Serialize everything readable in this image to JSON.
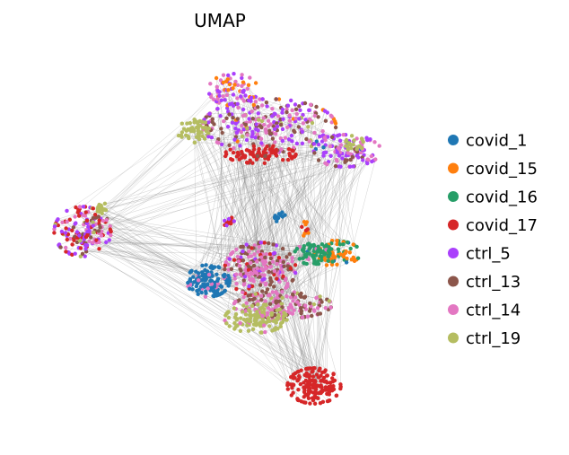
{
  "chart_data": {
    "type": "scatter",
    "title": "UMAP",
    "xlabel": "",
    "ylabel": "",
    "axes_visible": false,
    "grid": false,
    "legend_placement": "right",
    "edges_shown": true,
    "edge_color": "#7f7f7f",
    "series": [
      {
        "name": "covid_1",
        "color": "#1f77b4"
      },
      {
        "name": "covid_15",
        "color": "#ff7f0e"
      },
      {
        "name": "covid_16",
        "color": "#279e68"
      },
      {
        "name": "covid_17",
        "color": "#d62728"
      },
      {
        "name": "ctrl_5",
        "color": "#aa40fc"
      },
      {
        "name": "ctrl_13",
        "color": "#8c564b"
      },
      {
        "name": "ctrl_14",
        "color": "#e377c2"
      },
      {
        "name": "ctrl_19",
        "color": "#b5bd61"
      }
    ]
  }
}
